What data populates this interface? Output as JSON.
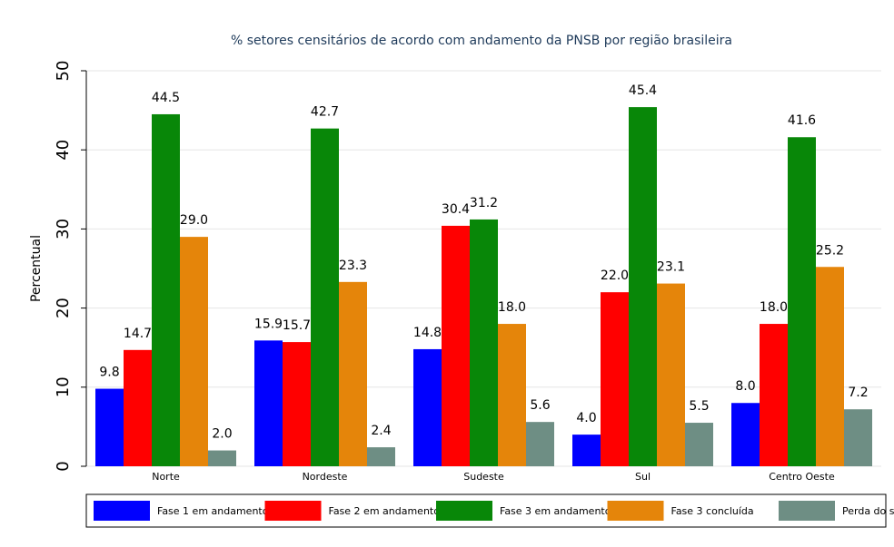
{
  "chart_data": {
    "type": "bar",
    "title": "% setores censitários de acordo com andamento da PNSB por região brasileira",
    "y_label": "Percentual",
    "categories": [
      "Norte",
      "Nordeste",
      "Sudeste",
      "Sul",
      "Centro Oeste"
    ],
    "series": [
      {
        "name": "Fase 1 em andamento",
        "color": "#0000ff",
        "values": [
          9.8,
          15.9,
          14.8,
          4.0,
          8.0
        ],
        "value_labels": [
          "9.8",
          "15.9",
          "14.8",
          "4.0",
          "8.0"
        ]
      },
      {
        "name": "Fase 2 em andamento",
        "color": "#ff0000",
        "values": [
          14.7,
          15.7,
          30.4,
          22.0,
          18.0
        ],
        "value_labels": [
          "14.7",
          "15.7",
          "30.4",
          "22.0",
          "18.0"
        ]
      },
      {
        "name": "Fase 3 em andamento",
        "color": "#088708",
        "values": [
          44.5,
          42.7,
          31.2,
          45.4,
          41.6
        ],
        "value_labels": [
          "44.5",
          "42.7",
          "31.2",
          "45.4",
          "41.6"
        ]
      },
      {
        "name": "Fase 3 concluída",
        "color": "#e5850a",
        "values": [
          29.0,
          23.3,
          18.0,
          23.1,
          25.2
        ],
        "value_labels": [
          "29.0",
          "23.3",
          "18.0",
          "23.1",
          "25.2"
        ]
      },
      {
        "name": "Perda do setor",
        "color": "#6e8e84",
        "values": [
          2.0,
          2.4,
          5.6,
          5.5,
          7.2
        ],
        "value_labels": [
          "2.0",
          "2.4",
          "5.6",
          "5.5",
          "7.2"
        ]
      }
    ],
    "ylim": [
      0,
      50
    ],
    "yticks": [
      0,
      10,
      20,
      30,
      40,
      50
    ],
    "grid": true,
    "legend": "bottom"
  }
}
